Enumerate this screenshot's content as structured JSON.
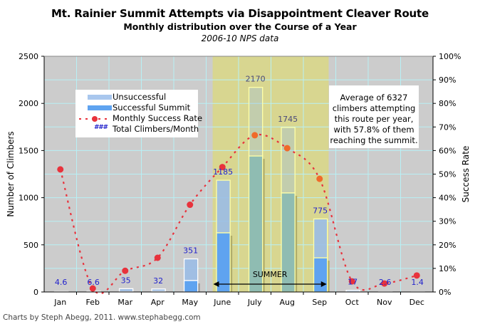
{
  "header": {
    "title": "Mt. Rainier Summit Attempts via Disappointment Cleaver Route",
    "subtitle": "Monthly distribution over the Course of a Year",
    "source": "2006-10 NPS data"
  },
  "legend": {
    "items": [
      {
        "label": "Unsuccessful",
        "color": "#a9c7ee"
      },
      {
        "label": "Successful Summit",
        "color": "#5fa3f0"
      },
      {
        "label": "Monthly Success Rate",
        "color": "#e8323c"
      },
      {
        "label": "Total Climbers/Month",
        "symbol": "###",
        "color": "#2222cc"
      }
    ]
  },
  "note": {
    "lines": [
      "Average of 6327",
      "climbers attempting",
      "this route per year,",
      "with 57.8% of them",
      "reaching the summit."
    ]
  },
  "summer": {
    "label": "SUMMER",
    "start_month": "June",
    "end_month": "Sep"
  },
  "credit": "Charts by Steph Abegg, 2011. www.stephabegg.com",
  "colors": {
    "plot_bg": "#cccccc",
    "grid": "#b8f0f5",
    "summer_band": "#d8d690",
    "unsuccessful": "#9bbde6",
    "successful": "#5fa3f0",
    "rate": "#e8323c",
    "total_label": "#2222cc"
  },
  "chart_data": {
    "type": "bar",
    "title": "Mt. Rainier Summit Attempts via Disappointment Cleaver Route",
    "subtitle": "Monthly distribution over the Course of a Year",
    "categories": [
      "Jan",
      "Feb",
      "Mar",
      "Apr",
      "May",
      "June",
      "July",
      "Aug",
      "Sep",
      "Oct",
      "Nov",
      "Dec"
    ],
    "series": [
      {
        "name": "Total Climbers/Month",
        "values": [
          4.6,
          6.6,
          35,
          32,
          351,
          1185,
          2170,
          1745,
          775,
          17,
          2.6,
          1.4
        ]
      },
      {
        "name": "Successful Summit",
        "values": [
          2.4,
          0.1,
          3,
          4.5,
          121,
          627,
          1442,
          1050,
          362,
          0.8,
          0.1,
          0.1
        ]
      },
      {
        "name": "Monthly Success Rate",
        "axis": "right",
        "values": [
          52,
          1.5,
          9,
          14.5,
          37,
          53,
          66.5,
          61,
          48,
          4.5,
          3.6,
          7
        ]
      }
    ],
    "total_labels": [
      "4.6",
      "6.6",
      "35",
      "32",
      "351",
      "1185",
      "2170",
      "1745",
      "775",
      "17",
      "2.6",
      "1.4"
    ],
    "xlabel": "",
    "ylabel": "Number of Climbers",
    "y2label": "Success Rate",
    "ylim": [
      0,
      2500
    ],
    "y2lim": [
      0,
      100
    ],
    "yticks": [
      "0",
      "500",
      "1000",
      "1500",
      "2000",
      "2500"
    ],
    "y2ticks": [
      "0%",
      "10%",
      "20%",
      "30%",
      "40%",
      "50%",
      "60%",
      "70%",
      "80%",
      "90%",
      "100%"
    ],
    "grid": true,
    "legend_position": "top-left",
    "annotation": "SUMMER"
  }
}
